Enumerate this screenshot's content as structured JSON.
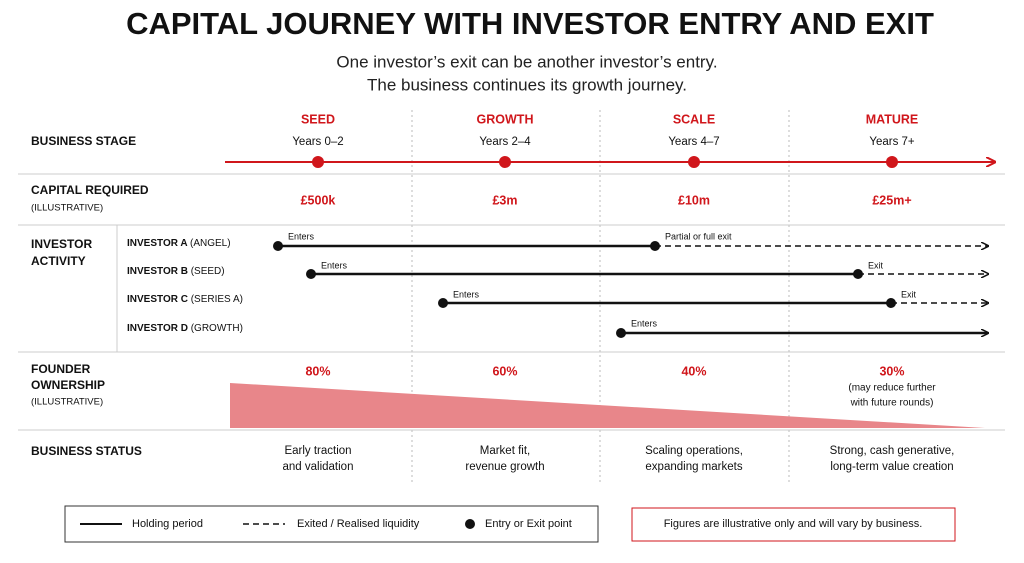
{
  "title": "CAPITAL JOURNEY WITH INVESTOR ENTRY AND EXIT",
  "subtitle": [
    "One investor’s exit can be another investor’s entry.",
    "The business continues its growth journey."
  ],
  "rows": {
    "business_stage": "BUSINESS STAGE",
    "capital_required": "CAPITAL REQUIRED",
    "capital_note": "(ILLUSTRATIVE)",
    "investor_activity": [
      "INVESTOR",
      "ACTIVITY"
    ],
    "founder_ownership": [
      "FOUNDER",
      "OWNERSHIP"
    ],
    "ownership_note": "(ILLUSTRATIVE)",
    "business_status": "BUSINESS STATUS"
  },
  "stages": [
    {
      "name": "SEED",
      "years": "Years 0–2",
      "capital": "£500k",
      "ownership": "80%",
      "status": [
        "Early traction",
        "and validation"
      ]
    },
    {
      "name": "GROWTH",
      "years": "Years 2–4",
      "capital": "£3m",
      "ownership": "60%",
      "status": [
        "Market fit,",
        "revenue growth"
      ]
    },
    {
      "name": "SCALE",
      "years": "Years 4–7",
      "capital": "£10m",
      "ownership": "40%",
      "status": [
        "Scaling operations,",
        "expanding markets"
      ]
    },
    {
      "name": "MATURE",
      "years": "Years 7+",
      "capital": "£25m+",
      "ownership": "30%",
      "status": [
        "Strong, cash generative,",
        "long-term value creation"
      ]
    }
  ],
  "mature_ownership_note": [
    "(may reduce further",
    "with future rounds)"
  ],
  "investors": [
    {
      "name": "INVESTOR A",
      "role": "(ANGEL)",
      "entry_label": "Enters",
      "exit_label": "Partial or full exit"
    },
    {
      "name": "INVESTOR B",
      "role": "(SEED)",
      "entry_label": "Enters",
      "exit_label": "Exit"
    },
    {
      "name": "INVESTOR C",
      "role": "(SERIES A)",
      "entry_label": "Enters",
      "exit_label": "Exit"
    },
    {
      "name": "INVESTOR D",
      "role": "(GROWTH)",
      "entry_label": "Enters"
    }
  ],
  "legend": {
    "holding": "Holding period",
    "exited": "Exited / Realised liquidity",
    "point": "Entry or Exit point"
  },
  "disclaimer": "Figures are illustrative only and will vary by business."
}
